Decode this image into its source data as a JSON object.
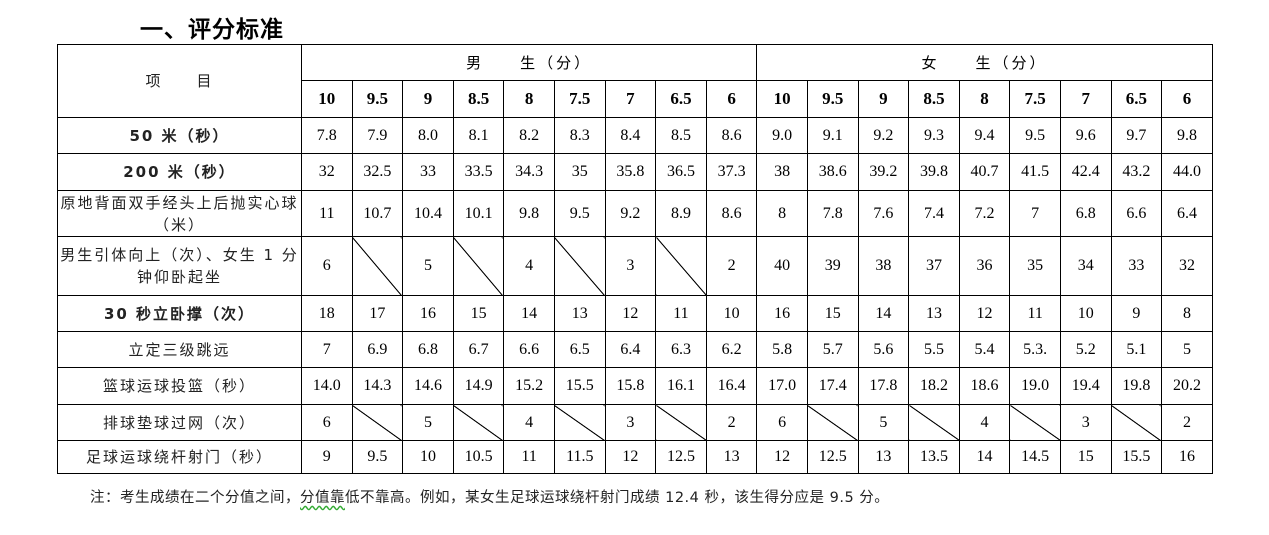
{
  "title": "一、评分标准",
  "table": {
    "item_header": "项　　目",
    "male_header": "男　　生（分）",
    "female_header": "女　　生（分）",
    "scores": [
      "10",
      "9.5",
      "9",
      "8.5",
      "8",
      "7.5",
      "7",
      "6.5",
      "6"
    ],
    "rows": [
      {
        "label": "50 米（秒）",
        "bold": true,
        "male": [
          "7.8",
          "7.9",
          "8.0",
          "8.1",
          "8.2",
          "8.3",
          "8.4",
          "8.5",
          "8.6"
        ],
        "female": [
          "9.0",
          "9.1",
          "9.2",
          "9.3",
          "9.4",
          "9.5",
          "9.6",
          "9.7",
          "9.8"
        ]
      },
      {
        "label": "200 米（秒）",
        "bold": true,
        "male": [
          "32",
          "32.5",
          "33",
          "33.5",
          "34.3",
          "35",
          "35.8",
          "36.5",
          "37.3"
        ],
        "female": [
          "38",
          "38.6",
          "39.2",
          "39.8",
          "40.7",
          "41.5",
          "42.4",
          "43.2",
          "44.0"
        ]
      },
      {
        "label": "原地背面双手经头上后抛实心球（米）",
        "bold": false,
        "male": [
          "11",
          "10.7",
          "10.4",
          "10.1",
          "9.8",
          "9.5",
          "9.2",
          "8.9",
          "8.6"
        ],
        "female": [
          "8",
          "7.8",
          "7.6",
          "7.4",
          "7.2",
          "7",
          "6.8",
          "6.6",
          "6.4"
        ]
      },
      {
        "label": "男生引体向上（次）、女生 1 分钟仰卧起坐",
        "bold": false,
        "male": [
          "6",
          null,
          "5",
          null,
          "4",
          null,
          "3",
          null,
          "2"
        ],
        "female": [
          "40",
          "39",
          "38",
          "37",
          "36",
          "35",
          "34",
          "33",
          "32"
        ]
      },
      {
        "label": "30 秒立卧撑（次）",
        "bold": true,
        "male": [
          "18",
          "17",
          "16",
          "15",
          "14",
          "13",
          "12",
          "11",
          "10"
        ],
        "female": [
          "16",
          "15",
          "14",
          "13",
          "12",
          "11",
          "10",
          "9",
          "8"
        ]
      },
      {
        "label": "立定三级跳远",
        "bold": false,
        "male": [
          "7",
          "6.9",
          "6.8",
          "6.7",
          "6.6",
          "6.5",
          "6.4",
          "6.3",
          "6.2"
        ],
        "female": [
          "5.8",
          "5.7",
          "5.6",
          "5.5",
          "5.4",
          "5.3.",
          "5.2",
          "5.1",
          "5"
        ]
      },
      {
        "label": "篮球运球投篮（秒）",
        "bold": false,
        "male": [
          "14.0",
          "14.3",
          "14.6",
          "14.9",
          "15.2",
          "15.5",
          "15.8",
          "16.1",
          "16.4"
        ],
        "female": [
          "17.0",
          "17.4",
          "17.8",
          "18.2",
          "18.6",
          "19.0",
          "19.4",
          "19.8",
          "20.2"
        ]
      },
      {
        "label": "排球垫球过网（次）",
        "bold": false,
        "male": [
          "6",
          null,
          "5",
          null,
          "4",
          null,
          "3",
          null,
          "2"
        ],
        "female": [
          "6",
          null,
          "5",
          null,
          "4",
          null,
          "3",
          null,
          "2"
        ]
      },
      {
        "label": "足球运球绕杆射门（秒）",
        "bold": false,
        "male": [
          "9",
          "9.5",
          "10",
          "10.5",
          "11",
          "11.5",
          "12",
          "12.5",
          "13"
        ],
        "female": [
          "12",
          "12.5",
          "13",
          "13.5",
          "14",
          "14.5",
          "15",
          "15.5",
          "16"
        ]
      }
    ]
  },
  "note": {
    "part1": "注：考生成绩在二个分值之间，",
    "part2": "分值靠",
    "part3": "低不靠高。例如，某女生足球运球绕杆射门成绩 12.4 秒，该生得分应是 9.5 分。"
  }
}
